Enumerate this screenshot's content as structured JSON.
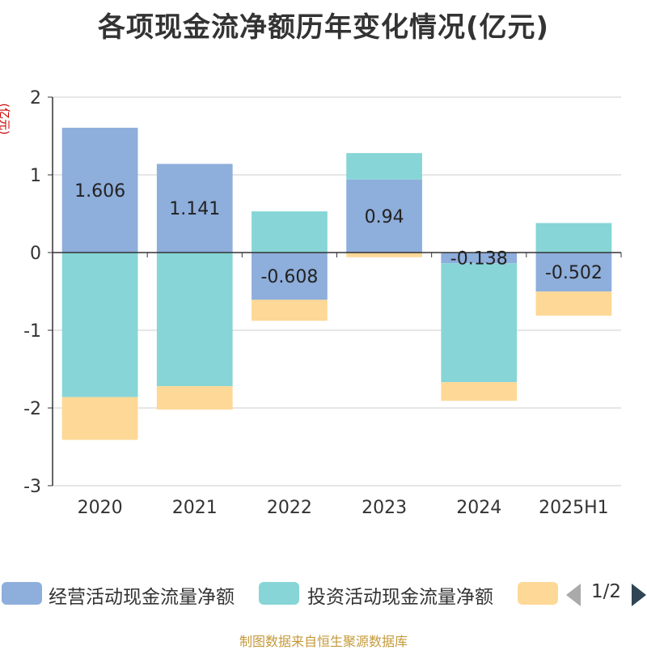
{
  "chart_data": {
    "type": "bar",
    "stacked": true,
    "title": "各项现金流净额历年变化情况(亿元)",
    "y_unit_label": "(亿元)",
    "categories": [
      "2020",
      "2021",
      "2022",
      "2023",
      "2024",
      "2025H1"
    ],
    "ylim": [
      -3,
      2
    ],
    "y_ticks": [
      2,
      1,
      0,
      -1,
      -2,
      -3
    ],
    "grid": true,
    "series": [
      {
        "name": "经营活动现金流量净额",
        "color": "#8eaedb",
        "values": [
          1.606,
          1.141,
          -0.608,
          0.94,
          -0.138,
          -0.502
        ],
        "labels": [
          "1.606",
          "1.141",
          "-0.608",
          "0.94",
          "-0.138",
          "-0.502"
        ]
      },
      {
        "name": "投资活动现金流量净额",
        "color": "#87d5d6",
        "values": [
          -1.86,
          -1.72,
          0.53,
          0.34,
          -1.53,
          0.38
        ]
      },
      {
        "name": "",
        "color": "#fed896",
        "values": [
          -0.55,
          -0.3,
          -0.27,
          -0.06,
          -0.24,
          -0.31
        ]
      }
    ],
    "legend_position": "bottom"
  },
  "legend": {
    "items": [
      {
        "label": "经营活动现金流量净额",
        "color": "#8eaedb"
      },
      {
        "label": "投资活动现金流量净额",
        "color": "#87d5d6"
      },
      {
        "label": "",
        "color": "#fed896"
      }
    ],
    "page_text": "1/2"
  },
  "source_note": "制图数据来自恒生聚源数据库"
}
